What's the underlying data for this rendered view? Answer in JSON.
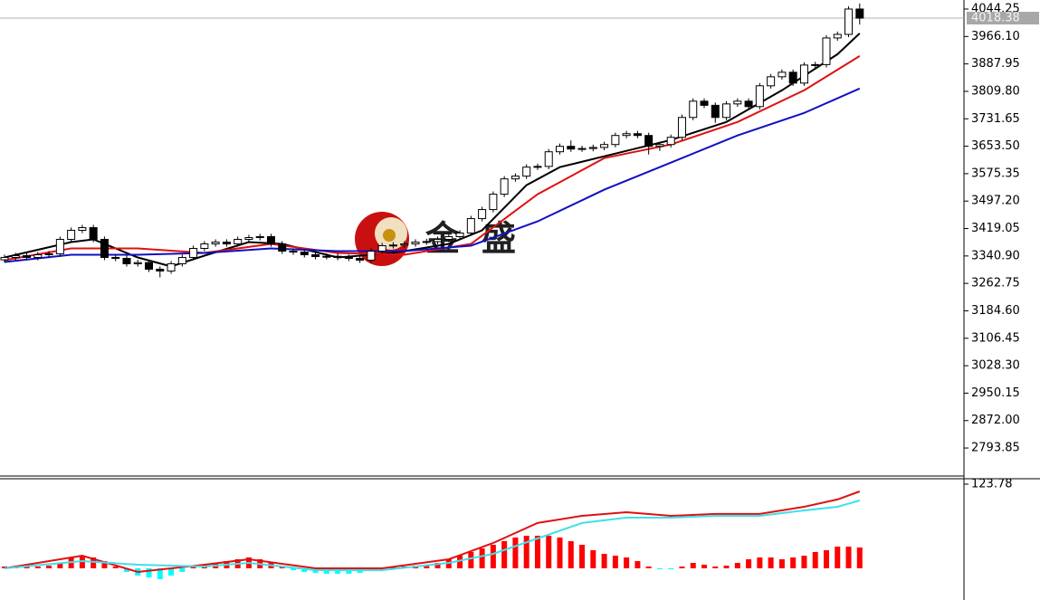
{
  "chart_data": [
    {
      "type": "candlestick",
      "open": [
        3330,
        3336.7,
        3341.8,
        3336.7,
        3344.4,
        3347.0,
        3388.2,
        3413.9,
        3421.6,
        3388.2,
        3336.7,
        3334.1,
        3318.7,
        3322.0,
        3303.2,
        3298.1,
        3318.7,
        3336.7,
        3362.4,
        3375.3,
        3380.4,
        3375.3,
        3388.2,
        3393.3,
        3396.0,
        3375.3,
        3354.7,
        3352.1,
        3344.4,
        3339.3,
        3340.0,
        3336.7,
        3334.1,
        3329.0,
        3354.7,
        3370.1,
        3372.0,
        3375.3,
        3380.4,
        3382.0,
        3388.2,
        3395.9,
        3406.2,
        3447.3,
        3473.1,
        3516.8,
        3560.5,
        3568.3,
        3594.0,
        3596.0,
        3637.7,
        3653.2,
        3645.5,
        3647.0,
        3650.0,
        3658.3,
        3684.1,
        3689.2,
        3684.1,
        3653.2,
        3658.3,
        3678.9,
        3735.5,
        3781.8,
        3770.0,
        3735.5,
        3774.0,
        3781.8,
        3766.4,
        3825.6,
        3851.3,
        3864.2,
        3833.3,
        3884.7,
        3886.0,
        3961.9,
        3972.1,
        4044.3
      ],
      "high": [
        3344.7,
        3349.8,
        3349.8,
        3352.4,
        3355,
        3396.2,
        3421.9,
        3429.6,
        3429.6,
        3396.2,
        3344.7,
        3342.1,
        3330,
        3330,
        3311.2,
        3326.7,
        3344.7,
        3370.4,
        3383.3,
        3388.4,
        3388.4,
        3396.2,
        3401.3,
        3404,
        3404,
        3383.3,
        3362.7,
        3360.1,
        3352.4,
        3348,
        3348,
        3344.7,
        3342.1,
        3362.7,
        3378.1,
        3380,
        3383.3,
        3388.4,
        3390,
        3396.2,
        3403.9,
        3414.2,
        3455.3,
        3481.1,
        3524.8,
        3568.5,
        3576.3,
        3602,
        3604,
        3645.7,
        3661.2,
        3670,
        3655,
        3658,
        3666.3,
        3692.1,
        3697.2,
        3697.2,
        3692.1,
        3666.3,
        3686.9,
        3743.5,
        3789.8,
        3789.8,
        3778,
        3782,
        3789.8,
        3789.8,
        3833.6,
        3859.3,
        3872.2,
        3872.2,
        3892.7,
        3894,
        3969.9,
        3980.1,
        4052.3,
        4060
      ],
      "low": [
        3322,
        3328.7,
        3328.7,
        3328.7,
        3336.4,
        3339,
        3380.2,
        3405.9,
        3380.2,
        3328.7,
        3326.1,
        3310.7,
        3310.7,
        3295.2,
        3280,
        3290.1,
        3310.7,
        3328.7,
        3354.4,
        3367.3,
        3367.3,
        3367.3,
        3380.2,
        3385.3,
        3367.3,
        3346.7,
        3344.1,
        3336.4,
        3331.3,
        3331.3,
        3328.7,
        3326.1,
        3321,
        3321,
        3346.7,
        3362.1,
        3364,
        3367.3,
        3372.4,
        3374,
        3380.2,
        3387.9,
        3398.2,
        3439.3,
        3465.1,
        3508.8,
        3552.5,
        3560.3,
        3586,
        3588,
        3629.7,
        3637.5,
        3637.5,
        3639,
        3642,
        3650.3,
        3676.1,
        3676.1,
        3630,
        3640,
        3650.3,
        3670.9,
        3727.5,
        3762,
        3720,
        3727.5,
        3766,
        3758.4,
        3758.4,
        3817.6,
        3843.3,
        3825.3,
        3825.3,
        3876.7,
        3878,
        3953.9,
        3964.1,
        4000
      ],
      "close": [
        3336.7,
        3341.8,
        3336.7,
        3344.4,
        3347.0,
        3388.2,
        3413.9,
        3421.6,
        3388.2,
        3336.7,
        3334.1,
        3318.7,
        3322.0,
        3303.2,
        3298.1,
        3318.7,
        3336.7,
        3362.4,
        3375.3,
        3380.4,
        3375.3,
        3388.2,
        3393.3,
        3396.0,
        3375.3,
        3354.7,
        3352.1,
        3344.4,
        3339.3,
        3340.0,
        3336.7,
        3334.1,
        3329.0,
        3354.7,
        3370.1,
        3372.0,
        3375.3,
        3380.4,
        3382.0,
        3388.2,
        3395.9,
        3406.2,
        3447.3,
        3473.1,
        3516.8,
        3560.5,
        3568.3,
        3594.0,
        3596.0,
        3637.7,
        3653.2,
        3645.5,
        3647.0,
        3650.0,
        3658.3,
        3684.1,
        3689.2,
        3684.1,
        3653.2,
        3658.3,
        3678.9,
        3735.5,
        3781.8,
        3770.0,
        3735.5,
        3774.0,
        3781.8,
        3766.4,
        3825.6,
        3851.3,
        3864.2,
        3833.3,
        3884.7,
        3886.0,
        3961.9,
        3972.1,
        4044.3,
        4018.38
      ],
      "up_color": "#ffffff",
      "down_color": "#000000",
      "lines": [
        {
          "color": "#000000",
          "x": [
            0,
            6,
            8,
            12,
            15,
            18,
            22,
            25,
            30,
            35,
            40,
            43,
            47,
            50,
            55,
            60,
            65,
            70,
            75,
            77
          ],
          "values": [
            3336.7,
            3380.4,
            3388.2,
            3336.7,
            3311.0,
            3341.8,
            3380.4,
            3375.3,
            3336.7,
            3349.6,
            3375.3,
            3413.9,
            3542.5,
            3594.0,
            3632.6,
            3671.2,
            3722.6,
            3812.7,
            3915.6,
            3974.8
          ]
        },
        {
          "color": "#e01010",
          "x": [
            0,
            6,
            12,
            18,
            24,
            30,
            36,
            42,
            48,
            54,
            60,
            66,
            72,
            77
          ],
          "values": [
            3329.0,
            3362.4,
            3362.4,
            3349.6,
            3375.3,
            3349.6,
            3344.4,
            3375.3,
            3516.8,
            3619.7,
            3658.3,
            3722.6,
            3812.7,
            3910.5
          ]
        },
        {
          "color": "#1010c0",
          "x": [
            0,
            6,
            12,
            18,
            24,
            30,
            36,
            42,
            48,
            54,
            60,
            66,
            72,
            77
          ],
          "values": [
            3323.8,
            3344.4,
            3344.4,
            3349.6,
            3362.4,
            3354.7,
            3354.7,
            3370.1,
            3439.6,
            3529.7,
            3606.9,
            3684.1,
            3748.4,
            3817.8
          ]
        }
      ],
      "ylim": [
        2714.1,
        4070.0
      ],
      "yticks": [
        4044.25,
        {
          "value": 3966.1,
          "label": "3966.10"
        },
        3887.95,
        {
          "value": 3809.8,
          "label": "3809.80"
        },
        3731.65,
        {
          "value": 3653.5,
          "label": "3653.50"
        },
        3575.35,
        {
          "value": 3497.2,
          "label": "3497.20"
        },
        3419.05,
        {
          "value": 3340.9,
          "label": "3340.90"
        },
        3262.75,
        {
          "value": 3184.6,
          "label": "3184.60"
        },
        3106.45,
        {
          "value": 3028.3,
          "label": "3028.30"
        },
        2950.15,
        {
          "value": 2872.0,
          "label": "2872.00"
        },
        2793.85
      ],
      "last_price": 4018.38,
      "watermark": [
        "金",
        "盛"
      ]
    },
    {
      "type": "macd",
      "values": [
        2.7,
        2.7,
        2.7,
        2.7,
        4.0,
        8.0,
        16.0,
        18.6,
        16.0,
        10.6,
        2.7,
        -5.3,
        -10.6,
        -13.3,
        -16.0,
        -10.6,
        -5.3,
        2.7,
        5.3,
        8.0,
        10.6,
        13.3,
        16.0,
        13.3,
        8.0,
        2.7,
        -2.7,
        -5.3,
        -6.7,
        -8.0,
        -8.0,
        -8.0,
        -6.7,
        -4.0,
        -1.3,
        1.3,
        2.7,
        4.0,
        5.3,
        8.0,
        13.3,
        18.6,
        24.0,
        29.3,
        34.6,
        39.9,
        45.3,
        47.9,
        47.9,
        47.9,
        45.3,
        39.9,
        34.6,
        26.6,
        21.3,
        18.6,
        16.0,
        10.6,
        2.7,
        -1.3,
        -1.3,
        2.7,
        8.0,
        5.3,
        2.7,
        4.0,
        8.0,
        13.3,
        16.0,
        16.0,
        13.3,
        16.0,
        18.6,
        24.0,
        26.6,
        31.9,
        31.9,
        30.6
      ],
      "up_color": "#ff0000",
      "down_color": "#00ffff",
      "lines": [
        {
          "color": "#e01010",
          "x": [
            0,
            7,
            12,
            18,
            22,
            28,
            34,
            40,
            44,
            48,
            52,
            56,
            60,
            64,
            68,
            72,
            75,
            77
          ],
          "values": [
            0,
            18.6,
            -5.3,
            5.3,
            13.3,
            0,
            0,
            13.3,
            37.3,
            66.6,
            77.2,
            82.5,
            77.2,
            79.9,
            79.9,
            90.5,
            101.2,
            113.1
          ]
        },
        {
          "color": "#40e0e8",
          "x": [
            0,
            7,
            12,
            18,
            22,
            28,
            34,
            40,
            44,
            48,
            52,
            56,
            60,
            64,
            68,
            72,
            75,
            77
          ],
          "values": [
            0,
            10.6,
            5.3,
            2.7,
            8.0,
            -2.7,
            -2.7,
            8.0,
            21.3,
            43.9,
            66.6,
            74.5,
            74.5,
            77.2,
            77.2,
            85.2,
            90.5,
            99.8
          ]
        }
      ],
      "ylim": [
        -46.6,
        130.4
      ],
      "yticks": [
        123.78
      ]
    }
  ]
}
